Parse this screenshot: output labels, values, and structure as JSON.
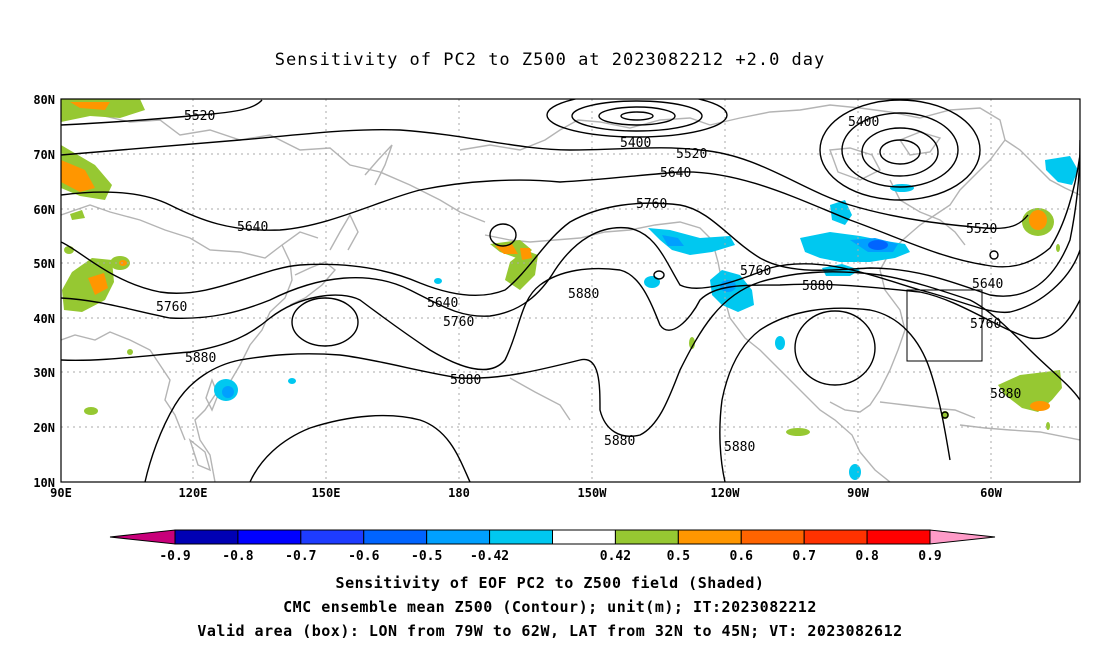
{
  "title": "Sensitivity of PC2 to Z500 at 2023082212 +2.0 day",
  "captions": [
    "Sensitivity of EOF PC2 to Z500 field (Shaded)",
    "CMC ensemble mean Z500 (Contour); unit(m); IT:2023082212",
    "Valid area (box): LON from 79W to 62W, LAT from 32N to 45N; VT: 2023082612"
  ],
  "axes": {
    "lat_labels": [
      "80N",
      "70N",
      "60N",
      "50N",
      "40N",
      "30N",
      "20N",
      "10N"
    ],
    "lon_labels": [
      "90E",
      "120E",
      "150E",
      "180",
      "150W",
      "120W",
      "90W",
      "60W"
    ]
  },
  "contour_labels": [
    "5520",
    "5400",
    "5400",
    "5520",
    "5640",
    "5760",
    "5640",
    "5760",
    "5880",
    "5880",
    "5880",
    "5880",
    "5880",
    "5760",
    "5640",
    "5880",
    "5520",
    "5640",
    "5760",
    "5880"
  ],
  "colorbar": {
    "labels": [
      "-0.9",
      "-0.8",
      "-0.7",
      "-0.6",
      "-0.5",
      "-0.42",
      "0.42",
      "0.5",
      "0.6",
      "0.7",
      "0.8",
      "0.9"
    ],
    "colors": [
      "#c8007a",
      "#0000b4",
      "#0000ff",
      "#1e3cff",
      "#0064ff",
      "#00a0ff",
      "#00c8f0",
      "#ffffff",
      "#96c832",
      "#ff9600",
      "#ff6400",
      "#ff3200",
      "#ff0000",
      "#ff9bc8"
    ]
  },
  "valid_box": {
    "lon_from": "79W",
    "lon_to": "62W",
    "lat_from": "32N",
    "lat_to": "45N"
  }
}
